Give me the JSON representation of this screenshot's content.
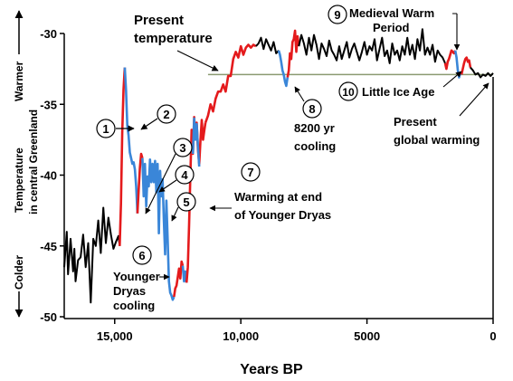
{
  "chart_data": {
    "type": "line",
    "xlabel": "Years BP",
    "ylabel_top": "Temperature",
    "ylabel_bottom": "in central Greenland",
    "warmer_label": "Warmer",
    "colder_label": "Colder",
    "xlim": [
      17000,
      0
    ],
    "ylim": [
      -50,
      -29
    ],
    "y_ticks": [
      -30,
      -35,
      -40,
      -45,
      -50
    ],
    "y_tick_labels": [
      "-30",
      "-35",
      "-40",
      "-45",
      "-50"
    ],
    "x_ticks": [
      15000,
      10000,
      5000,
      0
    ],
    "x_tick_labels": [
      "15,000",
      "10,000",
      "5000",
      "0"
    ],
    "present_temperature_line": -32.9,
    "colors": {
      "warming": "#e41a1c",
      "cooling": "#3a86d8",
      "neutral": "#000000",
      "present_line": "#8a9a70"
    },
    "series": [
      {
        "kind": "neutral",
        "x": [
          17000,
          16900,
          16850,
          16750,
          16650,
          16600,
          16550,
          16450,
          16350,
          16250,
          16150,
          16050,
          15950,
          15850,
          15750,
          15650,
          15550,
          15450,
          15350,
          15250,
          15150,
          15050,
          14950,
          14850,
          14800
        ],
        "y": [
          -46.5,
          -44,
          -47,
          -44.5,
          -46.8,
          -45.2,
          -47.5,
          -46,
          -45.8,
          -44.2,
          -46.5,
          -44.8,
          -49,
          -44.5,
          -45,
          -43.2,
          -45.5,
          -42.3,
          -44.8,
          -43,
          -44.2,
          -45.2,
          -44.7,
          -44.3,
          -45
        ]
      },
      {
        "kind": "warming",
        "x": [
          14800,
          14750,
          14700,
          14650,
          14600
        ],
        "y": [
          -45,
          -42,
          -37,
          -34,
          -32.4
        ]
      },
      {
        "kind": "cooling",
        "x": [
          14600,
          14550,
          14500,
          14450,
          14400,
          14350,
          14300,
          14250,
          14200,
          14150,
          14100
        ],
        "y": [
          -32.4,
          -34,
          -36.5,
          -37.2,
          -38.4,
          -38.8,
          -39.2,
          -39.1,
          -39.6,
          -40.8,
          -42.7
        ]
      },
      {
        "kind": "warming",
        "x": [
          14100,
          14050,
          14000,
          13950,
          13900
        ],
        "y": [
          -42.7,
          -41,
          -39.5,
          -38.5,
          -38.8
        ]
      },
      {
        "kind": "cooling",
        "x": [
          13900,
          13850,
          13800,
          13750,
          13700,
          13650,
          13600,
          13550,
          13500,
          13450,
          13400,
          13350,
          13300,
          13250,
          13200,
          13150,
          13100,
          13050,
          13000,
          12950,
          12900,
          12850,
          12800,
          12750,
          12700,
          12650
        ],
        "y": [
          -38.8,
          -41.5,
          -39.2,
          -42.2,
          -40.1,
          -40.8,
          -38.9,
          -40.5,
          -39.2,
          -40.5,
          -39,
          -41.2,
          -39.2,
          -44.1,
          -39.7,
          -41.5,
          -40.3,
          -43.2,
          -45.6,
          -41.8,
          -44.5,
          -47.5,
          -48.3,
          -48.5,
          -48.8,
          -48.6
        ]
      },
      {
        "kind": "warming",
        "x": [
          12650,
          12600,
          12550,
          12500,
          12450,
          12400,
          12350,
          12300
        ],
        "y": [
          -48.6,
          -48,
          -47.8,
          -47.2,
          -46.6,
          -47.3,
          -46.1,
          -46.4
        ]
      },
      {
        "kind": "cooling",
        "x": [
          12300,
          12250,
          12200,
          12150
        ],
        "y": [
          -46.4,
          -47.5,
          -46.8,
          -47.6
        ]
      },
      {
        "kind": "warming",
        "x": [
          12150,
          12100,
          12050,
          12000,
          11950,
          11900,
          11850,
          11800,
          11750,
          11700,
          11650,
          11600,
          11550,
          11500,
          11450,
          11400
        ],
        "y": [
          -47.6,
          -46.5,
          -43.5,
          -40,
          -36.8,
          -38.5,
          -35.9,
          -37.4,
          -36.3,
          -38.2,
          -39.2,
          -37.5,
          -36.1,
          -37.5,
          -36.9,
          -36.3
        ]
      },
      {
        "kind": "cooling",
        "x": [
          11900,
          11850,
          11800,
          11750,
          11700,
          11650
        ],
        "y": [
          -38.5,
          -36,
          -37.5,
          -36.4,
          -38,
          -39.4
        ]
      },
      {
        "kind": "warming",
        "x": [
          11400,
          11300,
          11200,
          11100,
          11000,
          10900,
          10800,
          10700,
          10600,
          10500,
          10400,
          10300,
          10200,
          10100,
          10000,
          9900,
          9800,
          9700,
          9600,
          9500,
          9400
        ],
        "y": [
          -36.3,
          -35.8,
          -35,
          -35.5,
          -34.6,
          -34.1,
          -34.1,
          -33.6,
          -34.1,
          -33,
          -33,
          -31.8,
          -31.3,
          -31.7,
          -30.9,
          -31.5,
          -31,
          -30.8,
          -31,
          -30.8,
          -30.9
        ]
      },
      {
        "kind": "neutral",
        "x": [
          9400,
          9300,
          9200,
          9100,
          9000,
          8900,
          8800,
          8700,
          8600,
          8500
        ],
        "y": [
          -30.9,
          -30.7,
          -30.3,
          -31.1,
          -30.4,
          -30.8,
          -31.2,
          -30.6,
          -31.4,
          -31.2
        ]
      },
      {
        "kind": "cooling",
        "x": [
          8500,
          8450,
          8400,
          8350,
          8300,
          8250,
          8200,
          8150
        ],
        "y": [
          -31.2,
          -31.5,
          -32,
          -32.6,
          -32.9,
          -33.4,
          -33.7,
          -33.1
        ]
      },
      {
        "kind": "warming",
        "x": [
          8150,
          8100,
          8050,
          8000,
          7950,
          7900,
          7850,
          7800,
          7750,
          7700
        ],
        "y": [
          -33.1,
          -32.6,
          -31.4,
          -31.8,
          -30.6,
          -30.4,
          -29.8,
          -31.3,
          -30.2,
          -30.9
        ]
      },
      {
        "kind": "neutral",
        "x": [
          7700,
          7600,
          7500,
          7400,
          7300,
          7200,
          7100,
          7000,
          6900,
          6800,
          6700,
          6600,
          6500,
          6400,
          6300,
          6200,
          6100,
          6000,
          5900,
          5800,
          5700,
          5600,
          5500,
          5400,
          5300,
          5200,
          5100,
          5000,
          4900,
          4800,
          4700,
          4600,
          4500,
          4400,
          4300,
          4200,
          4100,
          4000,
          3900,
          3800,
          3700,
          3600,
          3500,
          3400,
          3300,
          3200,
          3100,
          3000,
          2900,
          2800,
          2700,
          2600,
          2500,
          2400,
          2300,
          2200,
          2100,
          2000,
          1900
        ],
        "y": [
          -30.9,
          -30.1,
          -30.7,
          -31.5,
          -30.3,
          -31.2,
          -30.1,
          -30.8,
          -31.8,
          -30.7,
          -31.1,
          -31.6,
          -30.5,
          -31.2,
          -31.5,
          -31.9,
          -30.9,
          -31.8,
          -31.2,
          -30.6,
          -31.7,
          -31.1,
          -30.7,
          -31.3,
          -31.9,
          -31.3,
          -30.6,
          -31.5,
          -30.9,
          -31.2,
          -30.4,
          -31.9,
          -31.1,
          -30.3,
          -31.6,
          -31.2,
          -32.1,
          -30.7,
          -31.5,
          -31.2,
          -31.9,
          -30.9,
          -31.5,
          -30.3,
          -31.5,
          -30.8,
          -31.8,
          -30.4,
          -31.2,
          -29.7,
          -31.5,
          -31,
          -31.5,
          -30.8,
          -32,
          -31.2,
          -31.5,
          -31.7,
          -32.1
        ]
      },
      {
        "kind": "warming",
        "x": [
          1900,
          1850,
          1800,
          1750,
          1700,
          1650,
          1600,
          1550,
          1500
        ],
        "y": [
          -32.1,
          -32.5,
          -32,
          -31.8,
          -31.5,
          -31.2,
          -31.3,
          -31.4,
          -31.2
        ]
      },
      {
        "kind": "cooling",
        "x": [
          1500,
          1450,
          1400,
          1350,
          1300,
          1250
        ],
        "y": [
          -31.2,
          -31.7,
          -32.6,
          -33.1,
          -32.8,
          -32.9
        ]
      },
      {
        "kind": "warming",
        "x": [
          1250,
          1200,
          1150,
          1100,
          1050,
          1000,
          950,
          900
        ],
        "y": [
          -32.9,
          -32.5,
          -32.1,
          -31.8,
          -31.7,
          -32,
          -31.9,
          -32.4
        ]
      },
      {
        "kind": "neutral",
        "x": [
          900,
          800,
          700,
          600,
          500,
          400,
          300,
          200,
          100,
          0
        ],
        "y": [
          -32.4,
          -32.6,
          -32.9,
          -32.8,
          -33.1,
          -32.9,
          -33,
          -32.8,
          -33,
          -32.8
        ]
      }
    ],
    "annotations": [
      {
        "id": "1",
        "text": "1"
      },
      {
        "id": "2",
        "text": "2"
      },
      {
        "id": "3",
        "text": "3"
      },
      {
        "id": "4",
        "text": "4"
      },
      {
        "id": "5",
        "text": "5"
      },
      {
        "id": "6",
        "text": "6"
      },
      {
        "id": "7",
        "text": "7"
      },
      {
        "id": "8",
        "text": "8"
      },
      {
        "id": "9",
        "text": "9"
      },
      {
        "id": "10",
        "text": "10"
      }
    ],
    "labels": {
      "present_temperature_1": "Present",
      "present_temperature_2": "temperature",
      "younger_dryas_1": "Younger",
      "younger_dryas_2": "Dryas",
      "younger_dryas_3": "cooling",
      "warming_end_1": "Warming at end",
      "warming_end_2": "of Younger Dryas",
      "cooling_8200_1": "8200 yr",
      "cooling_8200_2": "cooling",
      "medieval_1": "Medieval Warm",
      "medieval_2": "Period",
      "little_ice_age": "Little Ice Age",
      "present_gw_1": "Present",
      "present_gw_2": "global warming"
    }
  }
}
